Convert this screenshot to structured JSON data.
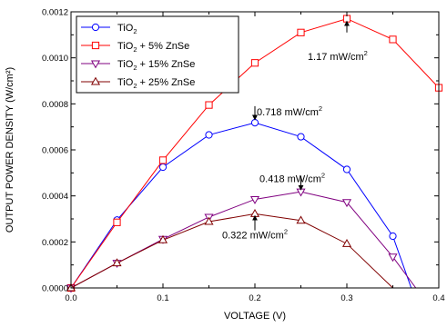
{
  "chart_data": {
    "type": "line",
    "title": "",
    "xlabel": "VOLTAGE (V)",
    "ylabel": "OUTPUT POWER DENSITY (W/cm²)",
    "xlim": [
      0.0,
      0.4
    ],
    "ylim": [
      0.0,
      0.0012
    ],
    "xticks": [
      0.0,
      0.1,
      0.2,
      0.3,
      0.4
    ],
    "xtick_labels": [
      "0.0",
      "0.1",
      "0.2",
      "0.3",
      "0.4"
    ],
    "yticks": [
      0.0,
      0.0002,
      0.0004,
      0.0006,
      0.0008,
      0.001,
      0.0012
    ],
    "ytick_labels": [
      "0.0000",
      "0.0002",
      "0.0004",
      "0.0006",
      "0.0008",
      "0.0010",
      "0.0012"
    ],
    "grid": false,
    "legend_position": "top-left",
    "series": [
      {
        "name": "TiO2",
        "legend_base": "TiO",
        "legend_sub": "2",
        "legend_suffix": "",
        "color": "#0000ff",
        "marker": "circle",
        "x": [
          0.0,
          0.05,
          0.1,
          0.15,
          0.2,
          0.25,
          0.3,
          0.35,
          0.37
        ],
        "y": [
          0.0,
          0.000295,
          0.000525,
          0.000665,
          0.000718,
          0.000657,
          0.000515,
          0.000225,
          0.0
        ]
      },
      {
        "name": "TiO2 + 5% ZnSe",
        "legend_base": "TiO",
        "legend_sub": "2",
        "legend_suffix": " + 5% ZnSe",
        "color": "#ff0000",
        "marker": "square",
        "x": [
          0.0,
          0.05,
          0.1,
          0.15,
          0.2,
          0.25,
          0.3,
          0.35,
          0.4
        ],
        "y": [
          0.0,
          0.000285,
          0.000555,
          0.000795,
          0.000978,
          0.00111,
          0.00117,
          0.00108,
          0.00087
        ]
      },
      {
        "name": "TiO2 + 15% ZnSe",
        "legend_base": "TiO",
        "legend_sub": "2",
        "legend_suffix": " + 15% ZnSe",
        "color": "#800080",
        "marker": "triangle-down",
        "x": [
          0.0,
          0.05,
          0.1,
          0.15,
          0.2,
          0.25,
          0.3,
          0.35,
          0.375
        ],
        "y": [
          0.0,
          0.000108,
          0.000212,
          0.000308,
          0.000385,
          0.000418,
          0.000372,
          0.000135,
          0.0
        ]
      },
      {
        "name": "TiO2 + 25% ZnSe",
        "legend_base": "TiO",
        "legend_sub": "2",
        "legend_suffix": " + 25% ZnSe",
        "color": "#800000",
        "marker": "triangle-up",
        "x": [
          0.0,
          0.05,
          0.1,
          0.15,
          0.2,
          0.25,
          0.3,
          0.35,
          0.365
        ],
        "y": [
          0.0,
          0.000108,
          0.000208,
          0.000288,
          0.000322,
          0.000293,
          0.000192,
          0.0,
          0.0
        ]
      }
    ],
    "annotations": [
      {
        "label": "1.17 mW/cm",
        "sup": "2",
        "point": [
          0.3,
          0.00117
        ],
        "text_at": [
          0.29,
          0.00099
        ],
        "anchor": "middle",
        "arrow_from": [
          0.3,
          0.00111
        ],
        "arrow_to": [
          0.3,
          0.00115
        ]
      },
      {
        "label": "0.718 mW/cm",
        "sup": "2",
        "point": [
          0.2,
          0.000718
        ],
        "text_at": [
          0.202,
          0.00075
        ],
        "anchor": "start",
        "arrow_from": [
          0.2,
          0.00079
        ],
        "arrow_to": [
          0.2,
          0.00074
        ]
      },
      {
        "label": "0.418 mW/cm",
        "sup": "2",
        "point": [
          0.25,
          0.000418
        ],
        "text_at": [
          0.205,
          0.00046
        ],
        "anchor": "start",
        "arrow_from": [
          0.25,
          0.000485
        ],
        "arrow_to": [
          0.25,
          0.000435
        ]
      },
      {
        "label": "0.322 mW/cm",
        "sup": "2",
        "point": [
          0.2,
          0.000322
        ],
        "text_at": [
          0.2,
          0.000215
        ],
        "anchor": "middle",
        "arrow_from": [
          0.2,
          0.00025
        ],
        "arrow_to": [
          0.2,
          0.000305
        ]
      }
    ]
  }
}
